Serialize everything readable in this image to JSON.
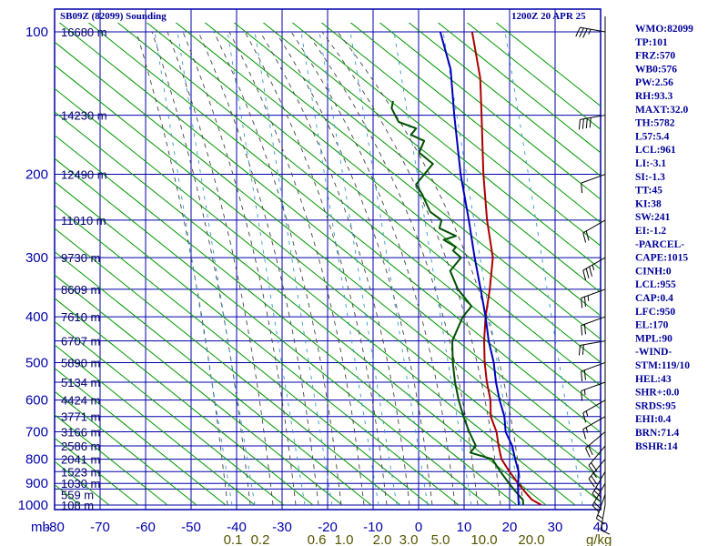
{
  "chart_data": {
    "type": "line",
    "title": "SB09Z (82099) Sounding",
    "datetime": "1200Z 20 APR 25",
    "pressure_unit_label": "mb",
    "mixing_ratio_unit_label": "g/kg",
    "pressure_ticks": [
      100,
      200,
      300,
      400,
      500,
      600,
      700,
      800,
      900,
      1000
    ],
    "extra_pressure_lines": [
      150,
      250,
      350,
      450,
      550,
      650,
      750,
      850,
      925
    ],
    "height_labels": [
      {
        "p": 100,
        "text": "16680 m"
      },
      {
        "p": 150,
        "text": "14230 m"
      },
      {
        "p": 200,
        "text": "12490 m"
      },
      {
        "p": 250,
        "text": "11010 m"
      },
      {
        "p": 300,
        "text": "9730 m"
      },
      {
        "p": 350,
        "text": "8609 m"
      },
      {
        "p": 400,
        "text": "7610 m"
      },
      {
        "p": 450,
        "text": "6707 m"
      },
      {
        "p": 500,
        "text": "5890 m"
      },
      {
        "p": 550,
        "text": "5134 m"
      },
      {
        "p": 600,
        "text": "4424 m"
      },
      {
        "p": 650,
        "text": "3771 m"
      },
      {
        "p": 700,
        "text": "3166 m"
      },
      {
        "p": 750,
        "text": "2586 m"
      },
      {
        "p": 800,
        "text": "2041 m"
      },
      {
        "p": 850,
        "text": "1523 m"
      },
      {
        "p": 900,
        "text": "1030 m"
      },
      {
        "p": 950,
        "text": "559 m"
      },
      {
        "p": 1000,
        "text": "108 m"
      }
    ],
    "temperature_ticks": [
      "-80",
      "-70",
      "-60",
      "-50",
      "-40",
      "-30",
      "-20",
      "-10",
      "0",
      "10",
      "20",
      "30",
      "40"
    ],
    "temperature_range": [
      -80,
      40
    ],
    "pressure_range": [
      100,
      1000
    ],
    "mixing_ratio_labels": [
      "0.1",
      "0.2",
      "0.6",
      "1.0",
      "2.0",
      "3.0",
      "5.0",
      "10.0",
      "20.0"
    ],
    "series": [
      {
        "name": "temperature",
        "color": "#aa0000",
        "points": [
          [
            1000,
            27
          ],
          [
            975,
            24
          ],
          [
            950,
            22
          ],
          [
            925,
            20
          ],
          [
            900,
            18
          ],
          [
            850,
            14
          ],
          [
            800,
            10
          ],
          [
            750,
            7
          ],
          [
            700,
            4
          ],
          [
            650,
            0
          ],
          [
            600,
            -3
          ],
          [
            550,
            -7
          ],
          [
            500,
            -11
          ],
          [
            450,
            -15
          ],
          [
            400,
            -19
          ],
          [
            350,
            -23
          ],
          [
            300,
            -28
          ],
          [
            250,
            -36
          ],
          [
            200,
            -45
          ],
          [
            150,
            -56
          ],
          [
            125,
            -63
          ],
          [
            100,
            -73
          ]
        ]
      },
      {
        "name": "dewpoint",
        "color": "#005000",
        "points": [
          [
            1000,
            23
          ],
          [
            975,
            22
          ],
          [
            950,
            20
          ],
          [
            925,
            18
          ],
          [
            900,
            16
          ],
          [
            850,
            12
          ],
          [
            800,
            8
          ],
          [
            775,
            2
          ],
          [
            750,
            2
          ],
          [
            700,
            -2
          ],
          [
            650,
            -6
          ],
          [
            600,
            -10
          ],
          [
            550,
            -14
          ],
          [
            500,
            -18
          ],
          [
            450,
            -22
          ],
          [
            400,
            -24
          ],
          [
            380,
            -24
          ],
          [
            350,
            -30
          ],
          [
            320,
            -35
          ],
          [
            300,
            -35
          ],
          [
            290,
            -38
          ],
          [
            285,
            -38
          ],
          [
            275,
            -42
          ],
          [
            270,
            -40
          ],
          [
            260,
            -45
          ],
          [
            250,
            -46
          ],
          [
            240,
            -50
          ],
          [
            220,
            -55
          ],
          [
            210,
            -58
          ],
          [
            190,
            -58
          ],
          [
            180,
            -63
          ],
          [
            170,
            -64
          ],
          [
            165,
            -68
          ],
          [
            160,
            -68
          ],
          [
            155,
            -73
          ],
          [
            150,
            -75
          ],
          [
            145,
            -77
          ],
          [
            140,
            -78
          ]
        ]
      },
      {
        "name": "parcel",
        "color": "#0000bb",
        "points": [
          [
            1000,
            22
          ],
          [
            950,
            20
          ],
          [
            900,
            18
          ],
          [
            850,
            16
          ],
          [
            800,
            13
          ],
          [
            750,
            10
          ],
          [
            700,
            6
          ],
          [
            650,
            3
          ],
          [
            600,
            -1
          ],
          [
            550,
            -5
          ],
          [
            500,
            -9
          ],
          [
            450,
            -14
          ],
          [
            400,
            -19
          ],
          [
            350,
            -25
          ],
          [
            300,
            -32
          ],
          [
            250,
            -40
          ],
          [
            200,
            -50
          ],
          [
            150,
            -62
          ],
          [
            120,
            -71
          ],
          [
            100,
            -80
          ]
        ]
      }
    ],
    "wind_barbs": [
      {
        "p": 100,
        "dir": 280,
        "spd": 35
      },
      {
        "p": 150,
        "dir": 260,
        "spd": 40
      },
      {
        "p": 200,
        "dir": 250,
        "spd": 10
      },
      {
        "p": 250,
        "dir": 240,
        "spd": 20
      },
      {
        "p": 300,
        "dir": 240,
        "spd": 35
      },
      {
        "p": 350,
        "dir": 250,
        "spd": 25
      },
      {
        "p": 400,
        "dir": 250,
        "spd": 20
      },
      {
        "p": 450,
        "dir": 260,
        "spd": 20
      },
      {
        "p": 500,
        "dir": 250,
        "spd": 20
      },
      {
        "p": 550,
        "dir": 250,
        "spd": 15
      },
      {
        "p": 600,
        "dir": 240,
        "spd": 15
      },
      {
        "p": 650,
        "dir": 240,
        "spd": 15
      },
      {
        "p": 700,
        "dir": 230,
        "spd": 20
      },
      {
        "p": 750,
        "dir": 220,
        "spd": 20
      },
      {
        "p": 800,
        "dir": 220,
        "spd": 25
      },
      {
        "p": 850,
        "dir": 210,
        "spd": 25
      },
      {
        "p": 900,
        "dir": 210,
        "spd": 20
      },
      {
        "p": 950,
        "dir": 200,
        "spd": 15
      },
      {
        "p": 1000,
        "dir": 190,
        "spd": 10
      }
    ],
    "indices": [
      "WMO:82099",
      "TP:101",
      "FRZ:570",
      "WB0:576",
      "PW:2.56",
      "RH:93.3",
      "MAXT:32.0",
      "TH:5782",
      "L57:5.4",
      "LCL:961",
      "LI:-3.1",
      "SI:-1.3",
      "TT:45",
      "KI:38",
      "SW:241",
      "EI:-1.2",
      "-PARCEL-",
      "CAPE:1015",
      "CINH:0",
      "LCL:955",
      "CAP:0.4",
      "LFC:950",
      "EL:170",
      "MPL:90",
      "-WIND-",
      "STM:119/10",
      "HEL:43",
      "SHR+:0.0",
      "SRDS:95",
      "EHI:0.4",
      "BRN:71.4",
      "BSHR:14"
    ],
    "colors": {
      "grid": "#0000aa",
      "dry_adiabat": "#009900",
      "moist_adiabat": "#444444",
      "mixing_ratio": "#3399cc",
      "axis_text": "#0000aa",
      "mixing_text": "#555500",
      "index_text": "#000099"
    }
  }
}
